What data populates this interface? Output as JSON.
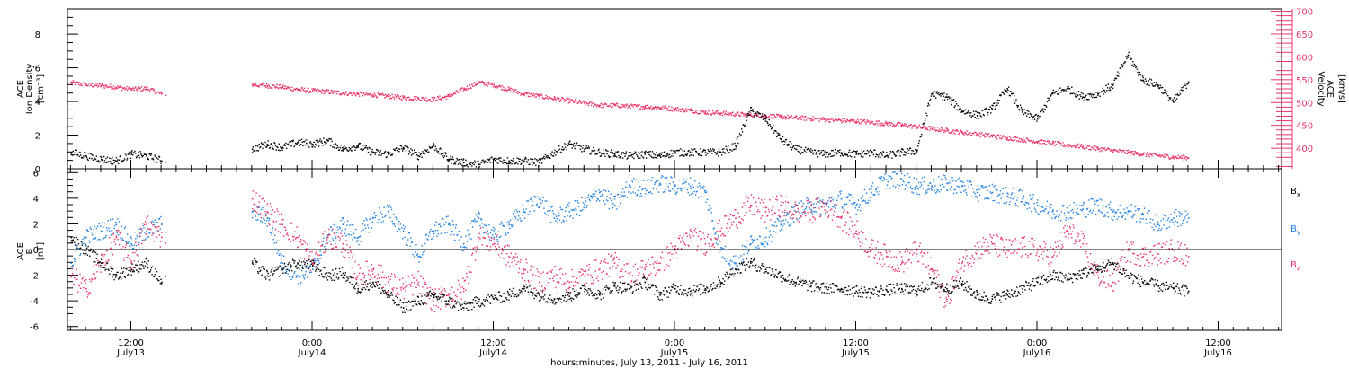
{
  "chart_data": [
    {
      "type": "scatter",
      "panel": "top",
      "xlabel": "hours:minutes, July 13, 2011 - July 16, 2011",
      "x_ticks": [
        {
          "hour": 12,
          "time": "12:00",
          "date": "July13"
        },
        {
          "hour": 24,
          "time": "0:00",
          "date": "July14"
        },
        {
          "hour": 36,
          "time": "12:00",
          "date": "July14"
        },
        {
          "hour": 48,
          "time": "0:00",
          "date": "July15"
        },
        {
          "hour": 60,
          "time": "12:00",
          "date": "July15"
        },
        {
          "hour": 72,
          "time": "0:00",
          "date": "July16"
        },
        {
          "hour": 84,
          "time": "12:00",
          "date": "July16"
        }
      ],
      "xlim": [
        7.8,
        88.2
      ],
      "left_axis": {
        "label_lines": [
          "ACE",
          "Ion Density"
        ],
        "unit": "[cm⁻³]",
        "ylim": [
          0,
          9.5
        ],
        "ticks": [
          0,
          2,
          4,
          6,
          8
        ],
        "color": "#000000"
      },
      "right_axis": {
        "label_lines": [
          "ACE",
          "Velocity"
        ],
        "unit": "[km/s]",
        "ylim": [
          355,
          705
        ],
        "ticks": [
          400,
          450,
          500,
          550,
          600,
          650,
          700
        ],
        "color": "#e8336a"
      },
      "data_gaps_hours": [
        [
          14.3,
          19.8
        ]
      ],
      "series": [
        {
          "axis": "left",
          "color": "#000000",
          "x": [
            8,
            9,
            10,
            11,
            12,
            13,
            14,
            20,
            21,
            22,
            23,
            24,
            25,
            26,
            27,
            28,
            29,
            30,
            31,
            32,
            33,
            34,
            35,
            36,
            37,
            38,
            39,
            40,
            41,
            42,
            43,
            44,
            45,
            46,
            47,
            48,
            49,
            50,
            51,
            52,
            53,
            54,
            55,
            56,
            57,
            58,
            59,
            60,
            61,
            62,
            63,
            64,
            65,
            66,
            67,
            68,
            69,
            70,
            71,
            72,
            73,
            74,
            75,
            76,
            77,
            78,
            79,
            80,
            81,
            82
          ],
          "y": [
            1.0,
            0.8,
            0.6,
            0.5,
            0.9,
            0.8,
            0.5,
            1.2,
            1.5,
            1.3,
            1.6,
            1.5,
            1.7,
            1.2,
            1.4,
            1.0,
            0.9,
            1.3,
            0.8,
            1.4,
            0.6,
            0.4,
            0.3,
            0.6,
            0.5,
            0.5,
            0.4,
            1.0,
            1.5,
            1.2,
            1.0,
            0.9,
            0.8,
            0.9,
            0.8,
            1.0,
            1.0,
            1.0,
            1.0,
            1.4,
            3.5,
            3.0,
            1.8,
            1.2,
            1.0,
            0.9,
            1.0,
            0.9,
            1.0,
            0.8,
            1.0,
            1.1,
            4.5,
            4.3,
            3.5,
            3.2,
            3.6,
            4.8,
            3.4,
            3.0,
            4.5,
            4.8,
            4.3,
            4.5,
            5.0,
            6.8,
            5.3,
            5.0,
            4.0,
            5.2
          ]
        },
        {
          "axis": "right",
          "color": "#e8336a",
          "x": [
            8,
            9,
            10,
            11,
            12,
            13,
            14,
            20,
            21,
            22,
            23,
            24,
            25,
            26,
            27,
            28,
            29,
            30,
            31,
            32,
            33,
            34,
            35,
            36,
            37,
            38,
            39,
            40,
            41,
            42,
            43,
            44,
            45,
            46,
            47,
            48,
            49,
            50,
            51,
            52,
            53,
            54,
            55,
            56,
            57,
            58,
            59,
            60,
            61,
            62,
            63,
            64,
            65,
            66,
            67,
            68,
            69,
            70,
            71,
            72,
            73,
            74,
            75,
            76,
            77,
            78,
            79,
            80,
            81,
            82
          ],
          "y": [
            545,
            540,
            538,
            535,
            530,
            532,
            520,
            540,
            538,
            535,
            530,
            527,
            525,
            522,
            520,
            518,
            515,
            512,
            510,
            508,
            515,
            530,
            545,
            540,
            530,
            520,
            515,
            510,
            505,
            500,
            495,
            495,
            493,
            492,
            490,
            487,
            484,
            480,
            478,
            476,
            474,
            472,
            470,
            468,
            466,
            464,
            462,
            460,
            458,
            455,
            452,
            448,
            444,
            440,
            436,
            432,
            428,
            424,
            420,
            416,
            412,
            408,
            405,
            400,
            396,
            392,
            388,
            385,
            382,
            380
          ]
        }
      ]
    },
    {
      "type": "scatter",
      "panel": "bottom",
      "xlim": [
        7.8,
        88.2
      ],
      "left_axis": {
        "label_lines": [
          "ACE",
          "B"
        ],
        "unit": "[nT]",
        "ylim": [
          -6.3,
          6.3
        ],
        "ticks": [
          -6,
          -4,
          -2,
          0,
          2,
          4,
          6
        ],
        "color": "#000000"
      },
      "zero_line": true,
      "data_gaps_hours": [
        [
          14.3,
          19.8
        ]
      ],
      "series": [
        {
          "name": "Bx",
          "color": "#000000",
          "x": [
            8,
            9,
            10,
            11,
            12,
            13,
            14,
            20,
            21,
            22,
            23,
            24,
            25,
            26,
            27,
            28,
            29,
            30,
            31,
            32,
            33,
            34,
            35,
            36,
            37,
            38,
            39,
            40,
            41,
            42,
            43,
            44,
            45,
            46,
            47,
            48,
            49,
            50,
            51,
            52,
            53,
            54,
            55,
            56,
            57,
            58,
            59,
            60,
            61,
            62,
            63,
            64,
            65,
            66,
            67,
            68,
            69,
            70,
            71,
            72,
            73,
            74,
            75,
            76,
            77,
            78,
            79,
            80,
            81,
            82
          ],
          "y": [
            1.0,
            0.0,
            -1.0,
            -2.0,
            -1.5,
            -1.0,
            -2.5,
            -1.0,
            -2.0,
            -1.5,
            -1.0,
            -1.2,
            -2.0,
            -1.8,
            -3.0,
            -2.5,
            -3.5,
            -4.5,
            -4.0,
            -3.5,
            -4.0,
            -4.5,
            -4.0,
            -3.8,
            -3.5,
            -3.0,
            -3.5,
            -3.8,
            -3.6,
            -3.0,
            -3.5,
            -2.8,
            -3.0,
            -2.5,
            -3.5,
            -3.0,
            -3.2,
            -3.0,
            -2.5,
            -1.5,
            -1.0,
            -1.5,
            -2.0,
            -2.5,
            -2.8,
            -3.0,
            -3.0,
            -3.2,
            -3.3,
            -3.1,
            -3.0,
            -3.2,
            -2.5,
            -3.0,
            -2.6,
            -3.5,
            -3.8,
            -3.5,
            -3.0,
            -2.5,
            -2.0,
            -2.2,
            -1.8,
            -1.5,
            -1.0,
            -2.0,
            -2.5,
            -2.8,
            -3.0,
            -3.2
          ]
        },
        {
          "name": "By",
          "color": "#1e7fe0",
          "x": [
            8,
            9,
            10,
            11,
            12,
            13,
            14,
            20,
            21,
            22,
            23,
            24,
            25,
            26,
            27,
            28,
            29,
            30,
            31,
            32,
            33,
            34,
            35,
            36,
            37,
            38,
            39,
            40,
            41,
            42,
            43,
            44,
            45,
            46,
            47,
            48,
            49,
            50,
            51,
            52,
            53,
            54,
            55,
            56,
            57,
            58,
            59,
            60,
            61,
            62,
            63,
            64,
            65,
            66,
            67,
            68,
            69,
            70,
            71,
            72,
            73,
            74,
            75,
            76,
            77,
            78,
            79,
            80,
            81,
            82
          ],
          "y": [
            -1.0,
            1.0,
            1.5,
            2.0,
            0.5,
            1.5,
            2.0,
            3.0,
            2.5,
            -1.0,
            -2.0,
            -1.5,
            1.0,
            2.0,
            1.0,
            2.5,
            3.0,
            1.5,
            -0.5,
            1.5,
            2.0,
            0.5,
            2.5,
            1.0,
            2.0,
            3.0,
            4.0,
            2.5,
            3.0,
            3.5,
            4.5,
            3.5,
            5.0,
            4.8,
            5.2,
            5.0,
            5.0,
            4.5,
            0.0,
            -1.0,
            0.5,
            1.0,
            2.0,
            3.0,
            3.5,
            3.5,
            4.0,
            3.5,
            4.5,
            5.5,
            5.5,
            5.0,
            5.0,
            5.2,
            5.0,
            4.5,
            4.5,
            4.2,
            4.0,
            3.5,
            3.0,
            3.0,
            3.2,
            3.5,
            3.0,
            3.0,
            2.8,
            2.0,
            2.5,
            2.5
          ]
        },
        {
          "name": "Bz",
          "color": "#e8336a",
          "x": [
            8,
            9,
            10,
            11,
            12,
            13,
            14,
            20,
            21,
            22,
            23,
            24,
            25,
            26,
            27,
            28,
            29,
            30,
            31,
            32,
            33,
            34,
            35,
            36,
            37,
            38,
            39,
            40,
            41,
            42,
            43,
            44,
            45,
            46,
            47,
            48,
            49,
            50,
            51,
            52,
            53,
            54,
            55,
            56,
            57,
            58,
            59,
            60,
            61,
            62,
            63,
            64,
            65,
            66,
            67,
            68,
            69,
            70,
            71,
            72,
            73,
            74,
            75,
            76,
            77,
            78,
            79,
            80,
            81,
            82
          ],
          "y": [
            -2.0,
            -3.0,
            -1.0,
            1.0,
            -1.0,
            2.0,
            1.0,
            4.0,
            3.0,
            2.0,
            1.0,
            -1.0,
            1.0,
            0.5,
            -2.0,
            -1.5,
            -2.5,
            -3.0,
            -2.5,
            -4.0,
            -3.5,
            -3.0,
            1.0,
            0.5,
            -0.5,
            -1.5,
            -2.5,
            -2.0,
            -2.5,
            -2.0,
            -1.5,
            -1.0,
            -2.0,
            -1.5,
            -1.0,
            0.0,
            1.0,
            0.5,
            1.5,
            2.5,
            3.5,
            3.0,
            3.5,
            3.0,
            3.0,
            3.5,
            2.5,
            1.5,
            0.0,
            -0.5,
            -1.0,
            0.0,
            -1.5,
            -4.0,
            -1.0,
            0.0,
            0.5,
            0.0,
            0.2,
            0.0,
            -0.5,
            1.5,
            0.5,
            -2.0,
            -2.5,
            0.0,
            -0.5,
            -0.3,
            0.0,
            -0.5
          ]
        }
      ]
    }
  ]
}
